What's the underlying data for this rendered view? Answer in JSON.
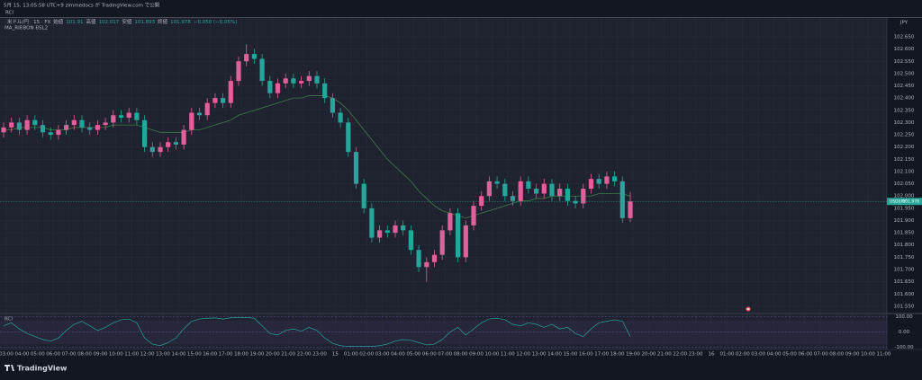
{
  "header": "5月 15, 13:05:58 UTC+9  zimmedocs が TradingView.com で公開",
  "toolbar": "RCI",
  "footer_logo": "TradingView",
  "chart_data": {
    "type": "candlestick",
    "symbol": "米ドル/円 · 15 · FX",
    "symbol_short": "USD/JPY",
    "currency": "JPY",
    "legend_labels": [
      "始値",
      "高値",
      "安値",
      "終値"
    ],
    "change": "−0.050 (−0.05%)",
    "up_color": "#e0609b",
    "down_color": "#26a69a",
    "ylim": [
      101.524,
      102.727
    ],
    "yticks": [
      {
        "value": 102.65,
        "label": "102.650"
      },
      {
        "value": 102.6,
        "label": "102.600"
      },
      {
        "value": 102.55,
        "label": "102.550"
      },
      {
        "value": 102.5,
        "label": "102.500"
      },
      {
        "value": 102.45,
        "label": "102.450"
      },
      {
        "value": 102.4,
        "label": "102.400"
      },
      {
        "value": 102.35,
        "label": "102.350"
      },
      {
        "value": 102.3,
        "label": "102.300"
      },
      {
        "value": 102.25,
        "label": "102.250"
      },
      {
        "value": 102.2,
        "label": "102.200"
      },
      {
        "value": 102.15,
        "label": "102.150"
      },
      {
        "value": 102.1,
        "label": "102.100"
      },
      {
        "value": 102.05,
        "label": "102.050"
      },
      {
        "value": 102,
        "label": "102.000"
      },
      {
        "value": 101.95,
        "label": "101.950"
      },
      {
        "value": 101.9,
        "label": "101.900"
      },
      {
        "value": 101.85,
        "label": "101.850"
      },
      {
        "value": 101.8,
        "label": "101.800"
      },
      {
        "value": 101.75,
        "label": "101.750"
      },
      {
        "value": 101.7,
        "label": "101.700"
      },
      {
        "value": 101.65,
        "label": "101.650"
      },
      {
        "value": 101.6,
        "label": "101.600"
      },
      {
        "value": 101.55,
        "label": "101.550"
      }
    ],
    "xticks": [
      "03:00",
      "04:00",
      "05:00",
      "06:00",
      "07:00",
      "08:00",
      "09:00",
      "10:00",
      "11:00",
      "12:00",
      "13:00",
      "14:00",
      "15:00",
      "16:00",
      "17:00",
      "18:00",
      "19:00",
      "20:00",
      "21:00",
      "22:00",
      "23:00",
      "15",
      "01:00",
      "02:00",
      "03:00",
      "04:00",
      "05:00",
      "06:00",
      "07:00",
      "08:00",
      "09:00",
      "10:00",
      "11:00",
      "12:00",
      "13:00",
      "14:00",
      "15:00",
      "16:00",
      "17:00",
      "18:00",
      "19:00",
      "20:00",
      "21:00",
      "22:00",
      "23:00",
      "16",
      "01:00",
      "02:00",
      "03:00",
      "04:00",
      "05:00",
      "06:00",
      "07:00",
      "08:00",
      "09:00",
      "10:00",
      "11:00"
    ],
    "grid": true,
    "open": [
      102.26,
      102.28,
      102.3,
      102.27,
      102.31,
      102.29,
      102.26,
      102.25,
      102.27,
      102.29,
      102.31,
      102.28,
      102.27,
      102.29,
      102.3,
      102.33,
      102.32,
      102.34,
      102.31,
      102.2,
      102.18,
      102.2,
      102.22,
      102.21,
      102.27,
      102.34,
      102.33,
      102.38,
      102.4,
      102.38,
      102.47,
      102.55,
      102.58,
      102.56,
      102.47,
      102.42,
      102.46,
      102.48,
      102.46,
      102.47,
      102.49,
      102.46,
      102.4,
      102.34,
      102.3,
      102.18,
      102.05,
      101.95,
      101.83,
      101.86,
      101.85,
      101.88,
      101.86,
      101.78,
      101.71,
      101.73,
      101.76,
      101.86,
      101.93,
      101.75,
      101.88,
      101.96,
      102.0,
      102.06,
      102.05,
      102.0,
      101.98,
      102.06,
      102.03,
      102.01,
      102.05,
      102.0,
      102.03,
      101.98,
      101.97,
      102.03,
      102.07,
      102.05,
      102.08,
      102.06,
      101.91
    ],
    "high": [
      102.3,
      102.32,
      102.32,
      102.33,
      102.33,
      102.31,
      102.28,
      102.29,
      102.31,
      102.33,
      102.33,
      102.3,
      102.31,
      102.32,
      102.35,
      102.35,
      102.36,
      102.36,
      102.33,
      102.22,
      102.22,
      102.24,
      102.24,
      102.29,
      102.36,
      102.36,
      102.4,
      102.42,
      102.42,
      102.49,
      102.57,
      102.62,
      102.6,
      102.58,
      102.49,
      102.48,
      102.5,
      102.5,
      102.49,
      102.51,
      102.51,
      102.48,
      102.42,
      102.36,
      102.32,
      102.2,
      102.07,
      101.97,
      101.88,
      101.88,
      101.9,
      101.9,
      101.88,
      101.8,
      101.75,
      101.78,
      101.88,
      101.95,
      101.95,
      101.9,
      101.98,
      102.02,
      102.08,
      102.08,
      102.07,
      102.02,
      102.08,
      102.08,
      102.05,
      102.07,
      102.07,
      102.05,
      102.05,
      102.0,
      102.05,
      102.09,
      102.09,
      102.1,
      102.1,
      102.08,
      102.017
    ],
    "low": [
      102.24,
      102.26,
      102.25,
      102.25,
      102.27,
      102.24,
      102.23,
      102.23,
      102.25,
      102.27,
      102.26,
      102.25,
      102.25,
      102.27,
      102.28,
      102.3,
      102.3,
      102.29,
      102.18,
      102.16,
      102.16,
      102.18,
      102.19,
      102.19,
      102.25,
      102.31,
      102.31,
      102.36,
      102.36,
      102.36,
      102.45,
      102.53,
      102.54,
      102.45,
      102.4,
      102.4,
      102.44,
      102.44,
      102.44,
      102.45,
      102.44,
      102.38,
      102.32,
      102.28,
      102.16,
      102.03,
      101.93,
      101.81,
      101.81,
      101.83,
      101.83,
      101.84,
      101.76,
      101.69,
      101.65,
      101.71,
      101.74,
      101.84,
      101.73,
      101.73,
      101.86,
      101.94,
      101.98,
      102.03,
      101.98,
      101.96,
      101.96,
      102.01,
      101.99,
      101.99,
      101.98,
      101.98,
      101.96,
      101.95,
      101.95,
      102.01,
      102.03,
      102.03,
      102.04,
      101.89,
      101.893
    ],
    "close": [
      102.28,
      102.3,
      102.27,
      102.31,
      102.29,
      102.26,
      102.25,
      102.27,
      102.29,
      102.31,
      102.28,
      102.27,
      102.29,
      102.3,
      102.33,
      102.32,
      102.34,
      102.31,
      102.2,
      102.18,
      102.2,
      102.22,
      102.21,
      102.27,
      102.34,
      102.33,
      102.38,
      102.4,
      102.38,
      102.47,
      102.55,
      102.58,
      102.56,
      102.47,
      102.42,
      102.46,
      102.48,
      102.46,
      102.47,
      102.49,
      102.46,
      102.4,
      102.34,
      102.3,
      102.18,
      102.05,
      101.95,
      101.83,
      101.86,
      101.85,
      101.88,
      101.86,
      101.78,
      101.71,
      101.73,
      101.76,
      101.86,
      101.93,
      101.75,
      101.88,
      101.96,
      102.0,
      102.06,
      102.05,
      102.0,
      101.98,
      102.06,
      102.03,
      102.01,
      102.05,
      102.0,
      102.03,
      101.98,
      101.97,
      102.03,
      102.07,
      102.05,
      102.08,
      102.06,
      101.91,
      101.978
    ],
    "ma": {
      "name": "MA_RIBBON BSL2",
      "color": "#3f7a45",
      "values": [
        102.27,
        102.27,
        102.28,
        102.28,
        102.28,
        102.28,
        102.27,
        102.27,
        102.27,
        102.28,
        102.28,
        102.28,
        102.28,
        102.28,
        102.29,
        102.29,
        102.29,
        102.29,
        102.28,
        102.27,
        102.26,
        102.26,
        102.26,
        102.26,
        102.27,
        102.27,
        102.28,
        102.29,
        102.3,
        102.31,
        102.33,
        102.34,
        102.35,
        102.36,
        102.37,
        102.38,
        102.39,
        102.4,
        102.4,
        102.41,
        102.41,
        102.41,
        102.4,
        102.38,
        102.35,
        102.31,
        102.27,
        102.23,
        102.19,
        102.15,
        102.12,
        102.09,
        102.06,
        102.02,
        101.99,
        101.96,
        101.94,
        101.93,
        101.92,
        101.91,
        101.92,
        101.93,
        101.94,
        101.95,
        101.96,
        101.97,
        101.98,
        101.98,
        101.99,
        101.99,
        102.0,
        102.0,
        102.0,
        102.0,
        102.0,
        102.0,
        102.01,
        102.01,
        102.01,
        102.01,
        102.0
      ]
    },
    "rci": {
      "name": "RCI",
      "color": "#2aa198",
      "ylim": [
        -115,
        115
      ],
      "yticks": [
        {
          "value": 100,
          "label": "100.00"
        },
        {
          "value": 0,
          "label": "0.00"
        },
        {
          "value": -100,
          "label": "-100.00"
        }
      ],
      "values": [
        40,
        60,
        20,
        -10,
        -30,
        -50,
        -60,
        -40,
        10,
        50,
        70,
        40,
        10,
        30,
        60,
        80,
        85,
        60,
        -40,
        -80,
        -90,
        -70,
        -40,
        20,
        70,
        85,
        90,
        92,
        85,
        93,
        95,
        95,
        90,
        40,
        -10,
        -20,
        10,
        20,
        5,
        30,
        10,
        -40,
        -75,
        -90,
        -95,
        -95,
        -95,
        -95,
        -90,
        -80,
        -60,
        -50,
        -55,
        -70,
        -85,
        -80,
        -50,
        0,
        30,
        -20,
        20,
        60,
        85,
        90,
        80,
        50,
        40,
        60,
        50,
        30,
        50,
        20,
        30,
        -10,
        -30,
        20,
        60,
        70,
        80,
        70,
        -30
      ]
    }
  }
}
